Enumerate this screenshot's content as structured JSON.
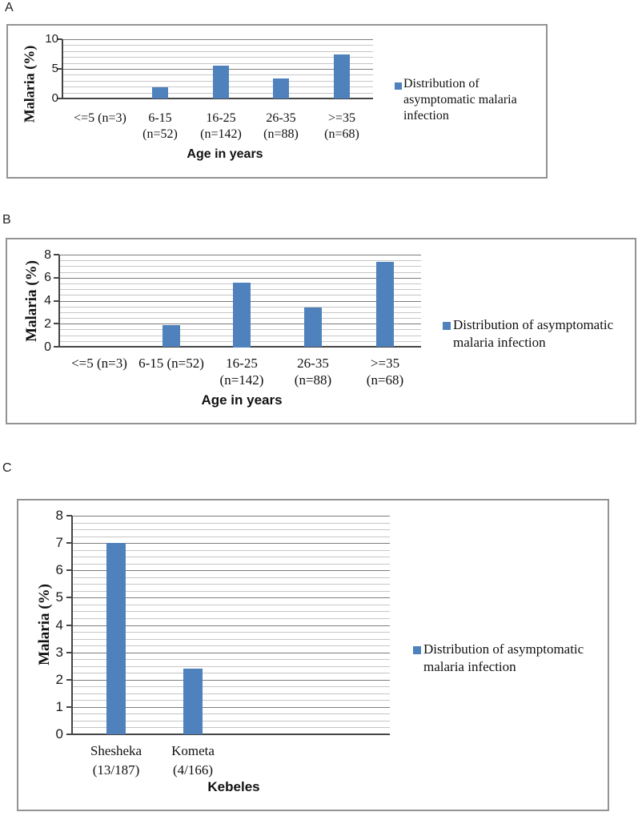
{
  "figure": {
    "panels": [
      "A",
      "B",
      "C"
    ],
    "accent_color": "#4f81bd"
  },
  "chart_data": [
    {
      "type": "bar",
      "panel": "A",
      "categories": [
        "<=5 (n=3)",
        "6-15 (n=52)",
        "16-25 (n=142)",
        "26-35 (n=88)",
        ">=35 (n=68)"
      ],
      "values": [
        0,
        1.9,
        5.6,
        3.4,
        7.4
      ],
      "category_label_lines": [
        [
          "<=5 (n=3)"
        ],
        [
          "6-15",
          "(n=52)"
        ],
        [
          "16-25",
          "(n=142)"
        ],
        [
          "26-35",
          "(n=88)"
        ],
        [
          ">=35",
          "(n=68)"
        ]
      ],
      "xlabel": "Age in years",
      "ylabel": "Malaria (%)",
      "ylim": [
        0,
        10
      ],
      "yticks": [
        0,
        5,
        10
      ],
      "ytick_labels": [
        "0",
        "5",
        "10"
      ],
      "minor_grid_step": 1,
      "grid": true,
      "legend_position": "right",
      "legend_label": "Distribution of asymptomatic malaria infection",
      "bar_color": "#4f81bd"
    },
    {
      "type": "bar",
      "panel": "B",
      "categories": [
        "<=5 (n=3)",
        "6-15 (n=52)",
        "16-25 (n=142)",
        "26-35 (n=88)",
        ">=35 (n=68)"
      ],
      "values": [
        0,
        1.9,
        5.6,
        3.4,
        7.4
      ],
      "category_label_lines": [
        [
          "<=5 (n=3)"
        ],
        [
          "6-15 (n=52)"
        ],
        [
          "16-25",
          "(n=142)"
        ],
        [
          "26-35",
          "(n=88)"
        ],
        [
          ">=35",
          "(n=68)"
        ]
      ],
      "xlabel": "Age in years",
      "ylabel": "Malaria (%)",
      "ylim": [
        0,
        8
      ],
      "yticks": [
        0,
        2,
        4,
        6,
        8
      ],
      "ytick_labels": [
        "0",
        "2",
        "4",
        "6",
        "8"
      ],
      "minor_grid_step": 0.5,
      "grid": true,
      "legend_position": "right",
      "legend_label": "Distribution of asymptomatic malaria infection",
      "bar_color": "#4f81bd"
    },
    {
      "type": "bar",
      "panel": "C",
      "categories": [
        "Shesheka (13/187)",
        "Kometa (4/166)"
      ],
      "values": [
        7,
        2.4
      ],
      "category_label_lines": [
        [
          "Shesheka",
          "(13/187)"
        ],
        [
          "Kometa",
          "(4/166)"
        ]
      ],
      "xlabel": "Kebeles",
      "ylabel": "Malaria (%)",
      "ylim": [
        0,
        8
      ],
      "yticks": [
        0,
        1,
        2,
        3,
        4,
        5,
        6,
        7,
        8
      ],
      "ytick_labels": [
        "0",
        "1",
        "2",
        "3",
        "4",
        "5",
        "6",
        "7",
        "8"
      ],
      "minor_grid_step": 0.25,
      "grid": true,
      "legend_position": "right",
      "legend_label": "Distribution of asymptomatic malaria infection",
      "bar_color": "#4f81bd"
    }
  ]
}
